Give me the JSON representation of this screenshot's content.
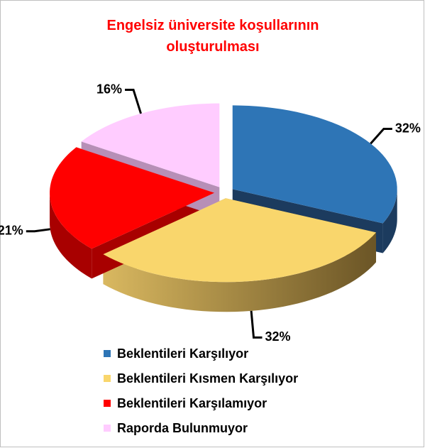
{
  "chart_data": {
    "type": "pie3d",
    "title": "Engelsiz üniversite koşullarının oluşturulması",
    "categories": [
      "Beklentileri Karşılıyor",
      "Beklentileri Kısmen Karşılıyor",
      "Beklentileri Karşılamıyor",
      "Raporda Bulunmuyor"
    ],
    "values": [
      32,
      32,
      21,
      16
    ],
    "value_labels": [
      "32%",
      "32%",
      "21%",
      "16%"
    ],
    "colors": [
      "#2e75b6",
      "#f9d66c",
      "#ff0000",
      "#ffccff"
    ],
    "legend": "bottom"
  }
}
